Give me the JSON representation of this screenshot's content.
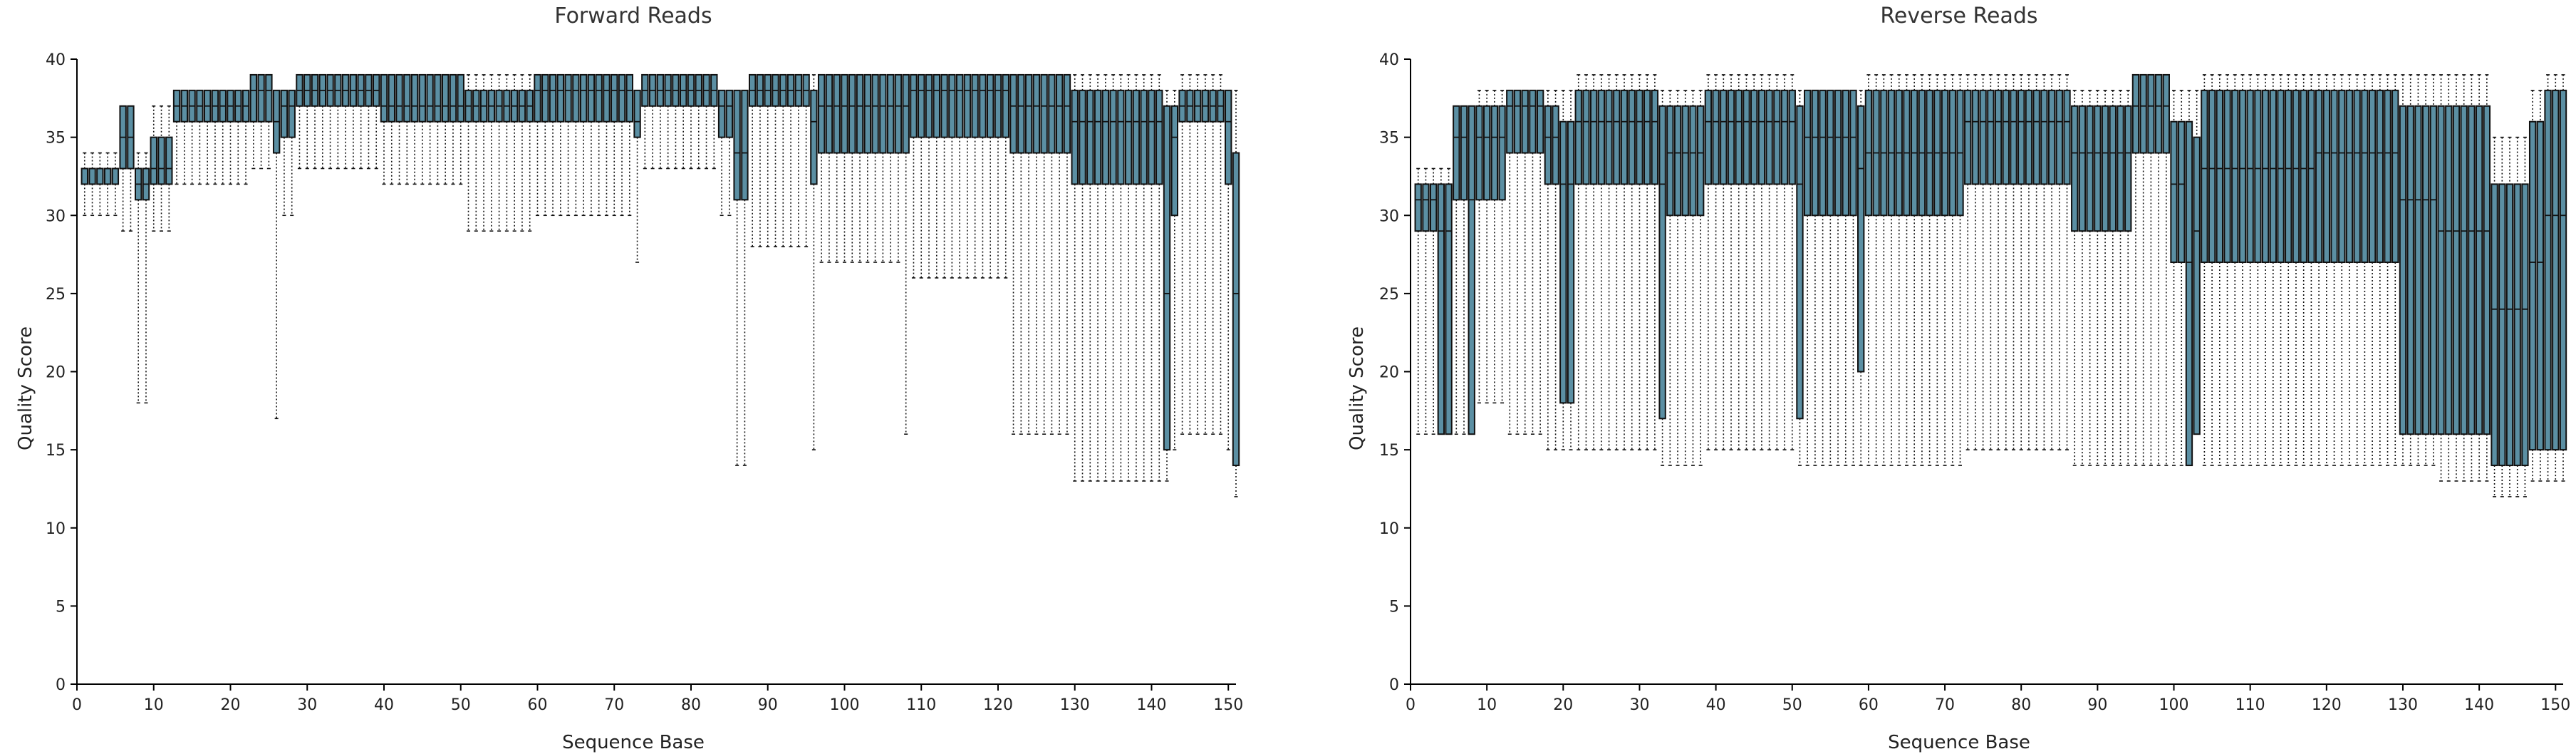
{
  "chart_data": [
    {
      "type": "box",
      "title": "Forward Reads",
      "xlabel": "Sequence Base",
      "ylabel": "Quality Score",
      "xlim": [
        0,
        151
      ],
      "ylim": [
        0,
        40
      ],
      "xticks": [
        0,
        10,
        20,
        30,
        40,
        50,
        60,
        70,
        80,
        90,
        100,
        110,
        120,
        130,
        140,
        150
      ],
      "yticks": [
        0,
        5,
        10,
        15,
        20,
        25,
        30,
        35,
        40
      ],
      "segments": [
        {
          "from": 1,
          "to": 5,
          "wl": 30,
          "q1": 32,
          "med": 33,
          "q3": 33,
          "wh": 34
        },
        {
          "from": 6,
          "to": 7,
          "wl": 29,
          "q1": 33,
          "med": 35,
          "q3": 37,
          "wh": 37
        },
        {
          "from": 8,
          "to": 9,
          "wl": 18,
          "q1": 31,
          "med": 32,
          "q3": 33,
          "wh": 34
        },
        {
          "from": 10,
          "to": 12,
          "wl": 29,
          "q1": 32,
          "med": 33,
          "q3": 35,
          "wh": 37
        },
        {
          "from": 13,
          "to": 22,
          "wl": 32,
          "q1": 36,
          "med": 37,
          "q3": 38,
          "wh": 38
        },
        {
          "from": 23,
          "to": 25,
          "wl": 33,
          "q1": 36,
          "med": 38,
          "q3": 39,
          "wh": 39
        },
        {
          "from": 26,
          "to": 26,
          "wl": 17,
          "q1": 34,
          "med": 36,
          "q3": 38,
          "wh": 38
        },
        {
          "from": 27,
          "to": 28,
          "wl": 30,
          "q1": 35,
          "med": 37,
          "q3": 38,
          "wh": 38
        },
        {
          "from": 29,
          "to": 39,
          "wl": 33,
          "q1": 37,
          "med": 38,
          "q3": 39,
          "wh": 39
        },
        {
          "from": 40,
          "to": 50,
          "wl": 32,
          "q1": 36,
          "med": 37,
          "q3": 39,
          "wh": 39
        },
        {
          "from": 51,
          "to": 59,
          "wl": 29,
          "q1": 36,
          "med": 37,
          "q3": 38,
          "wh": 39
        },
        {
          "from": 60,
          "to": 72,
          "wl": 30,
          "q1": 36,
          "med": 38,
          "q3": 39,
          "wh": 39
        },
        {
          "from": 73,
          "to": 73,
          "wl": 27,
          "q1": 35,
          "med": 36,
          "q3": 38,
          "wh": 38
        },
        {
          "from": 74,
          "to": 83,
          "wl": 33,
          "q1": 37,
          "med": 38,
          "q3": 39,
          "wh": 39
        },
        {
          "from": 84,
          "to": 85,
          "wl": 30,
          "q1": 35,
          "med": 37,
          "q3": 38,
          "wh": 38
        },
        {
          "from": 86,
          "to": 87,
          "wl": 14,
          "q1": 31,
          "med": 34,
          "q3": 38,
          "wh": 38
        },
        {
          "from": 88,
          "to": 95,
          "wl": 28,
          "q1": 37,
          "med": 38,
          "q3": 39,
          "wh": 39
        },
        {
          "from": 96,
          "to": 96,
          "wl": 15,
          "q1": 32,
          "med": 36,
          "q3": 38,
          "wh": 39
        },
        {
          "from": 97,
          "to": 107,
          "wl": 27,
          "q1": 34,
          "med": 37,
          "q3": 39,
          "wh": 39
        },
        {
          "from": 108,
          "to": 108,
          "wl": 16,
          "q1": 34,
          "med": 37,
          "q3": 39,
          "wh": 39
        },
        {
          "from": 109,
          "to": 121,
          "wl": 26,
          "q1": 35,
          "med": 38,
          "q3": 39,
          "wh": 39
        },
        {
          "from": 122,
          "to": 129,
          "wl": 16,
          "q1": 34,
          "med": 37,
          "q3": 39,
          "wh": 39
        },
        {
          "from": 130,
          "to": 141,
          "wl": 13,
          "q1": 32,
          "med": 36,
          "q3": 38,
          "wh": 39
        },
        {
          "from": 142,
          "to": 142,
          "wl": 13,
          "q1": 15,
          "med": 25,
          "q3": 37,
          "wh": 38
        },
        {
          "from": 143,
          "to": 143,
          "wl": 15,
          "q1": 30,
          "med": 35,
          "q3": 37,
          "wh": 38
        },
        {
          "from": 144,
          "to": 149,
          "wl": 16,
          "q1": 36,
          "med": 37,
          "q3": 38,
          "wh": 39
        },
        {
          "from": 150,
          "to": 150,
          "wl": 15,
          "q1": 32,
          "med": 36,
          "q3": 38,
          "wh": 38
        },
        {
          "from": 151,
          "to": 151,
          "wl": 12,
          "q1": 14,
          "med": 25,
          "q3": 34,
          "wh": 38
        }
      ]
    },
    {
      "type": "box",
      "title": "Reverse Reads",
      "xlabel": "Sequence Base",
      "ylabel": "Quality Score",
      "xlim": [
        0,
        151
      ],
      "ylim": [
        0,
        40
      ],
      "xticks": [
        0,
        10,
        20,
        30,
        40,
        50,
        60,
        70,
        80,
        90,
        100,
        110,
        120,
        130,
        140,
        150
      ],
      "yticks": [
        0,
        5,
        10,
        15,
        20,
        25,
        30,
        35,
        40
      ],
      "segments": [
        {
          "from": 1,
          "to": 3,
          "wl": 16,
          "q1": 29,
          "med": 31,
          "q3": 32,
          "wh": 33
        },
        {
          "from": 4,
          "to": 5,
          "wl": 16,
          "q1": 16,
          "med": 29,
          "q3": 32,
          "wh": 33
        },
        {
          "from": 6,
          "to": 7,
          "wl": 16,
          "q1": 31,
          "med": 35,
          "q3": 37,
          "wh": 37
        },
        {
          "from": 8,
          "to": 8,
          "wl": 16,
          "q1": 16,
          "med": 31,
          "q3": 37,
          "wh": 37
        },
        {
          "from": 9,
          "to": 12,
          "wl": 18,
          "q1": 31,
          "med": 35,
          "q3": 37,
          "wh": 38
        },
        {
          "from": 13,
          "to": 17,
          "wl": 16,
          "q1": 34,
          "med": 37,
          "q3": 38,
          "wh": 38
        },
        {
          "from": 18,
          "to": 19,
          "wl": 15,
          "q1": 32,
          "med": 35,
          "q3": 37,
          "wh": 38
        },
        {
          "from": 20,
          "to": 21,
          "wl": 15,
          "q1": 18,
          "med": 32,
          "q3": 36,
          "wh": 38
        },
        {
          "from": 22,
          "to": 32,
          "wl": 15,
          "q1": 32,
          "med": 36,
          "q3": 38,
          "wh": 39
        },
        {
          "from": 33,
          "to": 33,
          "wl": 14,
          "q1": 17,
          "med": 32,
          "q3": 37,
          "wh": 38
        },
        {
          "from": 34,
          "to": 38,
          "wl": 14,
          "q1": 30,
          "med": 34,
          "q3": 37,
          "wh": 38
        },
        {
          "from": 39,
          "to": 50,
          "wl": 15,
          "q1": 32,
          "med": 36,
          "q3": 38,
          "wh": 39
        },
        {
          "from": 51,
          "to": 51,
          "wl": 14,
          "q1": 17,
          "med": 32,
          "q3": 37,
          "wh": 38
        },
        {
          "from": 52,
          "to": 58,
          "wl": 14,
          "q1": 30,
          "med": 35,
          "q3": 38,
          "wh": 38
        },
        {
          "from": 59,
          "to": 59,
          "wl": 14,
          "q1": 20,
          "med": 33,
          "q3": 37,
          "wh": 38
        },
        {
          "from": 60,
          "to": 72,
          "wl": 14,
          "q1": 30,
          "med": 34,
          "q3": 38,
          "wh": 39
        },
        {
          "from": 73,
          "to": 86,
          "wl": 15,
          "q1": 32,
          "med": 36,
          "q3": 38,
          "wh": 39
        },
        {
          "from": 87,
          "to": 94,
          "wl": 14,
          "q1": 29,
          "med": 34,
          "q3": 37,
          "wh": 38
        },
        {
          "from": 95,
          "to": 99,
          "wl": 14,
          "q1": 34,
          "med": 37,
          "q3": 39,
          "wh": 39
        },
        {
          "from": 100,
          "to": 101,
          "wl": 14,
          "q1": 27,
          "med": 32,
          "q3": 36,
          "wh": 38
        },
        {
          "from": 102,
          "to": 102,
          "wl": 14,
          "q1": 14,
          "med": 27,
          "q3": 36,
          "wh": 38
        },
        {
          "from": 103,
          "to": 103,
          "wl": 16,
          "q1": 16,
          "med": 29,
          "q3": 35,
          "wh": 38
        },
        {
          "from": 104,
          "to": 118,
          "wl": 14,
          "q1": 27,
          "med": 33,
          "q3": 38,
          "wh": 39
        },
        {
          "from": 119,
          "to": 129,
          "wl": 14,
          "q1": 27,
          "med": 34,
          "q3": 38,
          "wh": 39
        },
        {
          "from": 130,
          "to": 134,
          "wl": 14,
          "q1": 16,
          "med": 31,
          "q3": 37,
          "wh": 39
        },
        {
          "from": 135,
          "to": 141,
          "wl": 13,
          "q1": 16,
          "med": 29,
          "q3": 37,
          "wh": 39
        },
        {
          "from": 142,
          "to": 146,
          "wl": 12,
          "q1": 14,
          "med": 24,
          "q3": 32,
          "wh": 35
        },
        {
          "from": 147,
          "to": 148,
          "wl": 13,
          "q1": 15,
          "med": 27,
          "q3": 36,
          "wh": 38
        },
        {
          "from": 149,
          "to": 151,
          "wl": 13,
          "q1": 15,
          "med": 30,
          "q3": 38,
          "wh": 39
        }
      ]
    }
  ]
}
